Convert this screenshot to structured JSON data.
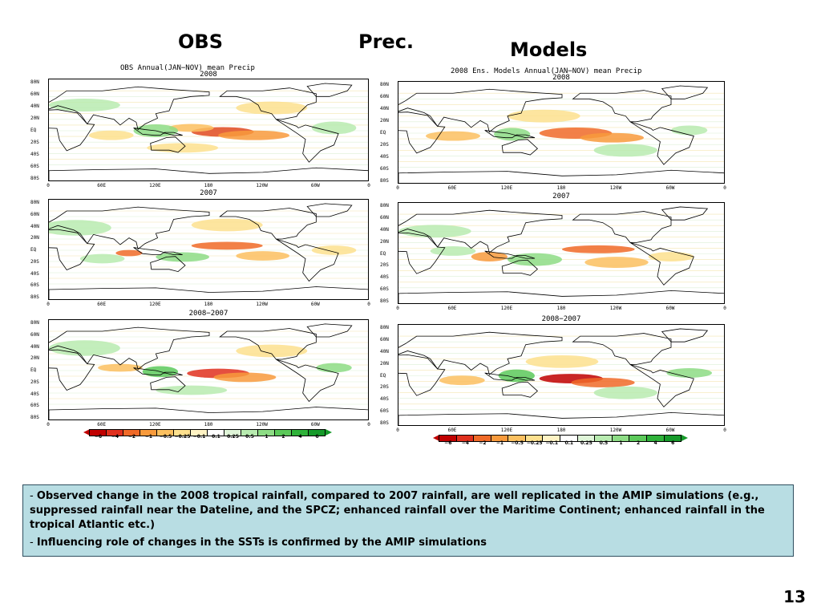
{
  "header": {
    "obs": "OBS",
    "prec": "Prec.",
    "models": "Models"
  },
  "left_panel": {
    "figure_title": "OBS Annual(JAN−NOV) mean Precip",
    "panels": [
      {
        "title": "2008"
      },
      {
        "title": "2007"
      },
      {
        "title": "2008−2007"
      }
    ]
  },
  "right_panel": {
    "figure_title": "2008 Ens. Models Annual(JAN−NOV) mean Precip",
    "panels": [
      {
        "title": "2008"
      },
      {
        "title": "2007"
      },
      {
        "title": "2008−2007"
      }
    ]
  },
  "lat_labels": [
    "80N",
    "60N",
    "40N",
    "20N",
    "EQ",
    "20S",
    "40S",
    "60S",
    "80S"
  ],
  "lon_labels": [
    "0",
    "60E",
    "120E",
    "180",
    "120W",
    "60W",
    "0"
  ],
  "colorbar": {
    "labels": [
      "−6",
      "−4",
      "−2",
      "−1",
      "−0.5",
      "−0.25",
      "−0.1",
      "0.1",
      "0.25",
      "0.5",
      "1",
      "2",
      "4",
      "6"
    ],
    "colors": [
      "#c00000",
      "#e0301e",
      "#f06a28",
      "#f89a3c",
      "#fbc060",
      "#fde08e",
      "#fff3c4",
      "#ffffff",
      "#dff5d8",
      "#b8ebb0",
      "#8ddc85",
      "#5cc95a",
      "#2fb23a",
      "#169a2a"
    ]
  },
  "notes": [
    {
      "dash": "-",
      "text": "Observed change in the 2008 tropical rainfall, compared to 2007 rainfall, are well replicated in the AMIP simulations (e.g., suppressed rainfall near the Dateline, and the SPCZ; enhanced rainfall over the Maritime Continent; enhanced rainfall in the tropical Atlantic etc.)"
    },
    {
      "dash": "-",
      "text": "Influencing role of changes in the SSTs is confirmed by the AMIP simulations"
    }
  ],
  "page_number": "13"
}
